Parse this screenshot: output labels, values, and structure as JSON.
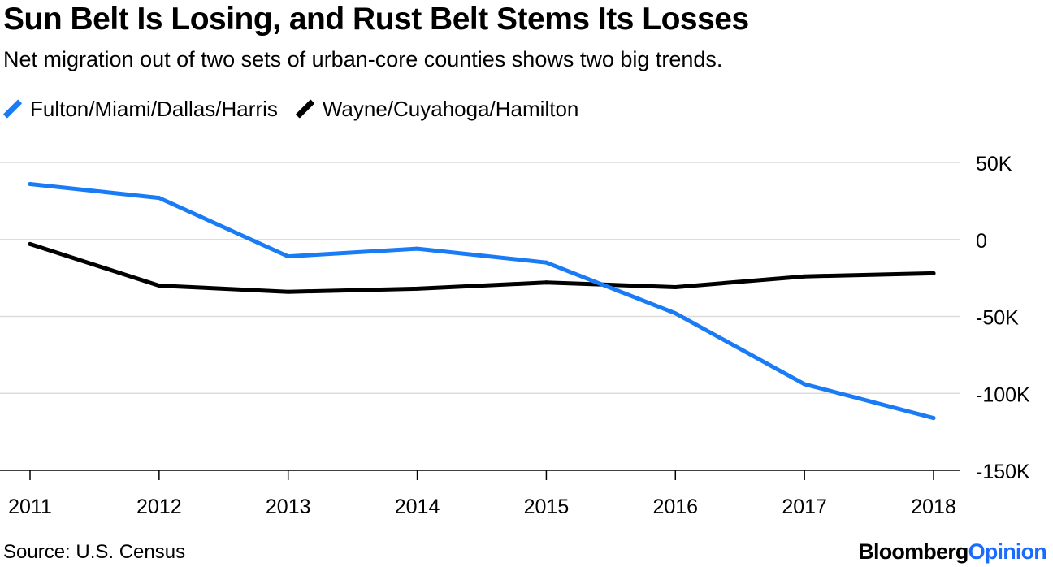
{
  "header": {
    "title": "Sun Belt Is Losing, and Rust Belt Stems Its Losses",
    "subtitle": "Net migration out of two sets of urban-core counties shows two big trends."
  },
  "footer": {
    "source": "Source: U.S. Census",
    "brand_part1": "Bloomberg",
    "brand_part2": "Opinion"
  },
  "chart_data": {
    "type": "line",
    "title": "Sun Belt Is Losing, and Rust Belt Stems Its Losses",
    "subtitle": "Net migration out of two sets of urban-core counties shows two big trends.",
    "xlabel": "",
    "ylabel": "",
    "x": [
      "2011",
      "2012",
      "2013",
      "2014",
      "2015",
      "2016",
      "2017",
      "2018"
    ],
    "ylim": [
      -150000,
      50000
    ],
    "yticks": [
      50000,
      0,
      -50000,
      -100000,
      -150000
    ],
    "ytick_labels": [
      "50K",
      "0",
      "-50K",
      "-100K",
      "-150K"
    ],
    "grid": true,
    "legend_position": "top-left",
    "series": [
      {
        "name": "Fulton/Miami/Dallas/Harris",
        "color": "#1a7cf5",
        "values": [
          36000,
          27000,
          -11000,
          -6000,
          -15000,
          -48000,
          -94000,
          -116000
        ]
      },
      {
        "name": "Wayne/Cuyahoga/Hamilton",
        "color": "#000000",
        "values": [
          -3000,
          -30000,
          -34000,
          -32000,
          -28000,
          -31000,
          -24000,
          -22000
        ]
      }
    ]
  }
}
